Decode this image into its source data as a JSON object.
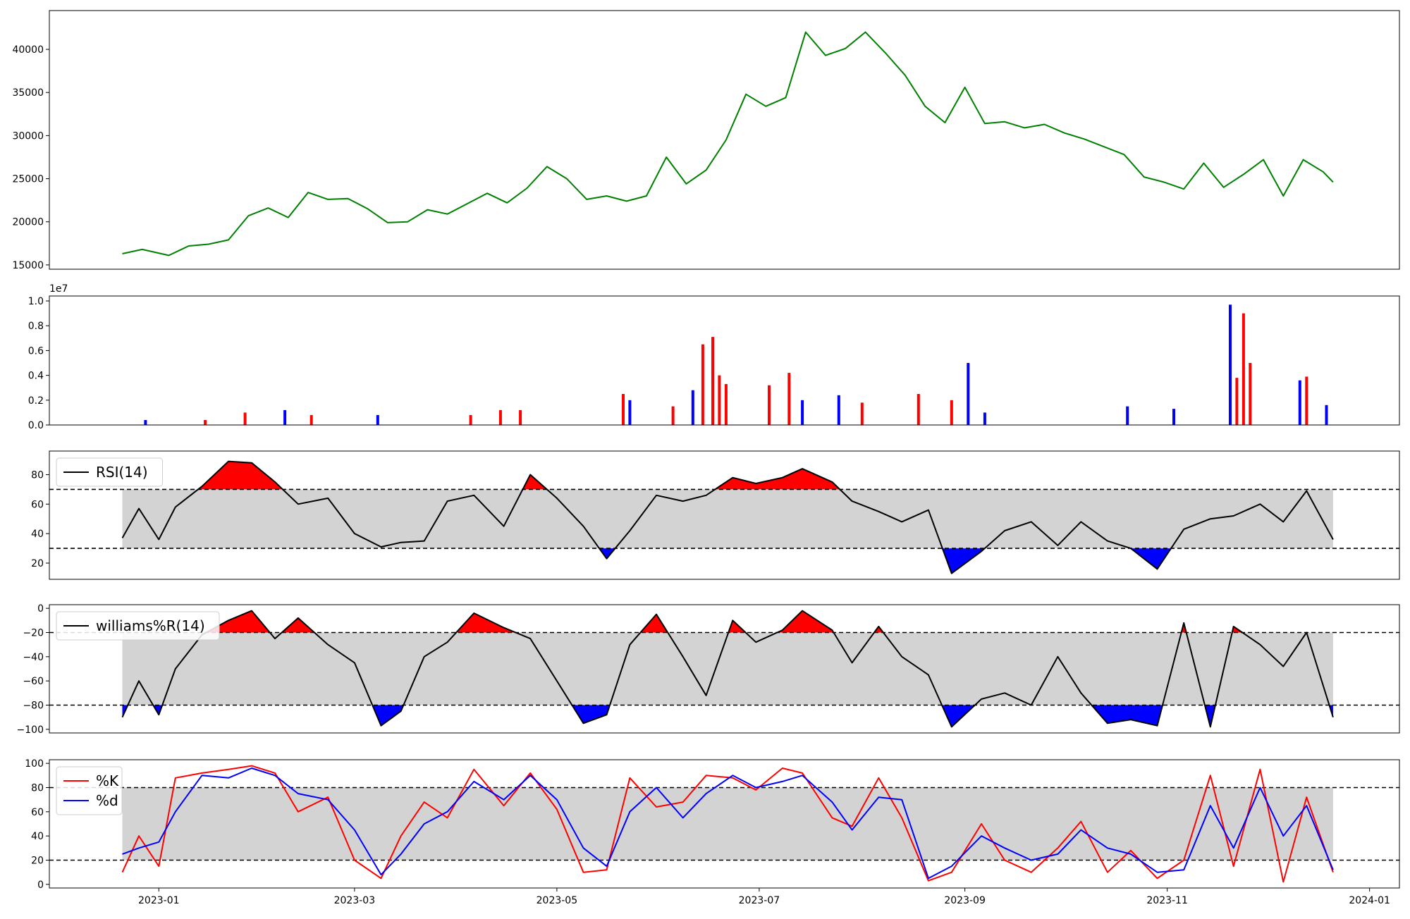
{
  "chart_data": [
    {
      "panel": "price",
      "type": "line",
      "title": "",
      "xlabel": "",
      "ylabel": "",
      "ylim": [
        14500,
        44500
      ],
      "yticks": [
        15000,
        20000,
        25000,
        30000,
        35000,
        40000
      ],
      "ytick_labels": [
        "15000",
        "20000",
        "25000",
        "30000",
        "35000",
        "40000"
      ],
      "line_color": "#008000",
      "series": [
        {
          "x": [
            "2022-12-21",
            "2022-12-27",
            "2023-01-04",
            "2023-01-10",
            "2023-01-16",
            "2023-01-22",
            "2023-01-28",
            "2023-02-03",
            "2023-02-09",
            "2023-02-15",
            "2023-02-21",
            "2023-02-27",
            "2023-03-05",
            "2023-03-11",
            "2023-03-17",
            "2023-03-23",
            "2023-03-29",
            "2023-04-04",
            "2023-04-10",
            "2023-04-16",
            "2023-04-22",
            "2023-04-28",
            "2023-05-04",
            "2023-05-10",
            "2023-05-16",
            "2023-05-22",
            "2023-05-28",
            "2023-06-03",
            "2023-06-09",
            "2023-06-15",
            "2023-06-21",
            "2023-06-27",
            "2023-07-03",
            "2023-07-09",
            "2023-07-15",
            "2023-07-21",
            "2023-07-27",
            "2023-08-02",
            "2023-08-08",
            "2023-08-14",
            "2023-08-20",
            "2023-08-26",
            "2023-09-01",
            "2023-09-07",
            "2023-09-13",
            "2023-09-19",
            "2023-09-25",
            "2023-10-01",
            "2023-10-07",
            "2023-10-13",
            "2023-10-19",
            "2023-10-25",
            "2023-10-31",
            "2023-11-06",
            "2023-11-12",
            "2023-11-18",
            "2023-11-24",
            "2023-11-30",
            "2023-12-06",
            "2023-12-12",
            "2023-12-18",
            "2023-12-21"
          ],
          "values": [
            16300,
            16800,
            16100,
            17200,
            17400,
            17900,
            20700,
            21600,
            20500,
            23400,
            22600,
            22700,
            21500,
            19900,
            20000,
            21400,
            20900,
            22100,
            23300,
            22200,
            23900,
            26400,
            25000,
            22600,
            23000,
            22400,
            23000,
            27500,
            24400,
            26000,
            29500,
            34800,
            33400,
            34400,
            42000,
            39300,
            40100,
            42000,
            39600,
            37000,
            33400,
            31500,
            35600,
            31400,
            31600,
            30900,
            31300,
            30300,
            29600,
            28700,
            27800,
            25200,
            24600,
            23800,
            26800,
            24000,
            25500,
            27200,
            23000,
            27200,
            25800,
            24600
          ]
        }
      ]
    },
    {
      "panel": "volume",
      "type": "bar",
      "title": "",
      "ylabel": "",
      "scale_label": "1e7",
      "ylim": [
        0,
        1.04
      ],
      "yticks": [
        0,
        0.2,
        0.4,
        0.6,
        0.8,
        1.0
      ],
      "ytick_labels": [
        "0.0",
        "0.2",
        "0.4",
        "0.6",
        "0.8",
        "1.0"
      ],
      "up_color": "#ff0000",
      "down_color": "#0000ff",
      "series": [
        {
          "x": [
            "2022-12-28",
            "2023-01-15",
            "2023-01-27",
            "2023-02-08",
            "2023-02-16",
            "2023-03-08",
            "2023-04-05",
            "2023-04-14",
            "2023-04-20",
            "2023-05-21",
            "2023-05-23",
            "2023-06-05",
            "2023-06-11",
            "2023-06-14",
            "2023-06-17",
            "2023-06-19",
            "2023-06-21",
            "2023-07-04",
            "2023-07-10",
            "2023-07-14",
            "2023-07-25",
            "2023-08-01",
            "2023-08-18",
            "2023-08-28",
            "2023-09-02",
            "2023-09-07",
            "2023-10-20",
            "2023-11-03",
            "2023-11-20",
            "2023-11-22",
            "2023-11-24",
            "2023-11-26",
            "2023-12-11",
            "2023-12-13",
            "2023-12-19"
          ],
          "values": [
            0.04,
            0.04,
            0.1,
            0.12,
            0.08,
            0.08,
            0.08,
            0.12,
            0.12,
            0.25,
            0.2,
            0.15,
            0.28,
            0.65,
            0.71,
            0.4,
            0.33,
            0.32,
            0.42,
            0.2,
            0.24,
            0.18,
            0.25,
            0.2,
            0.5,
            0.1,
            0.15,
            0.13,
            0.97,
            0.38,
            0.9,
            0.5,
            0.36,
            0.39,
            0.16
          ],
          "colors": [
            "blue",
            "red",
            "red",
            "blue",
            "red",
            "blue",
            "red",
            "red",
            "red",
            "red",
            "blue",
            "red",
            "blue",
            "red",
            "red",
            "red",
            "red",
            "red",
            "red",
            "blue",
            "blue",
            "red",
            "red",
            "red",
            "blue",
            "blue",
            "blue",
            "blue",
            "blue",
            "red",
            "red",
            "red",
            "blue",
            "red",
            "blue"
          ]
        }
      ]
    },
    {
      "panel": "rsi",
      "type": "line",
      "ylim": [
        9,
        96
      ],
      "yticks": [
        20,
        40,
        60,
        80
      ],
      "ytick_labels": [
        "20",
        "40",
        "60",
        "80"
      ],
      "thresholds": [
        30,
        70
      ],
      "legend": [
        "RSI(14)"
      ],
      "legend_location": "upper-left",
      "band_color": "#d3d3d3",
      "overbought_fill": "#ff0000",
      "oversold_fill": "#0000ff",
      "series": [
        {
          "name": "RSI(14)",
          "x": [
            "2022-12-21",
            "2022-12-26",
            "2023-01-01",
            "2023-01-06",
            "2023-01-14",
            "2023-01-22",
            "2023-01-29",
            "2023-02-05",
            "2023-02-12",
            "2023-02-21",
            "2023-03-01",
            "2023-03-09",
            "2023-03-15",
            "2023-03-22",
            "2023-03-29",
            "2023-04-06",
            "2023-04-15",
            "2023-04-23",
            "2023-05-01",
            "2023-05-09",
            "2023-05-16",
            "2023-05-23",
            "2023-05-31",
            "2023-06-08",
            "2023-06-15",
            "2023-06-23",
            "2023-06-30",
            "2023-07-08",
            "2023-07-14",
            "2023-07-23",
            "2023-07-29",
            "2023-08-06",
            "2023-08-13",
            "2023-08-21",
            "2023-08-28",
            "2023-09-06",
            "2023-09-13",
            "2023-09-21",
            "2023-09-29",
            "2023-10-06",
            "2023-10-14",
            "2023-10-21",
            "2023-10-29",
            "2023-11-06",
            "2023-11-14",
            "2023-11-21",
            "2023-11-29",
            "2023-12-06",
            "2023-12-13",
            "2023-12-21"
          ],
          "values": [
            37,
            57,
            36,
            58,
            72,
            89,
            88,
            75,
            60,
            64,
            40,
            31,
            34,
            35,
            62,
            66,
            45,
            80,
            64,
            45,
            23,
            42,
            66,
            62,
            66,
            78,
            74,
            78,
            84,
            75,
            62,
            55,
            48,
            56,
            13,
            28,
            42,
            48,
            32,
            48,
            35,
            30,
            16,
            43,
            50,
            52,
            60,
            48,
            69,
            36
          ]
        }
      ]
    },
    {
      "panel": "williams",
      "type": "line",
      "ylim": [
        -103,
        3
      ],
      "yticks": [
        -100,
        -80,
        -60,
        -40,
        -20,
        0
      ],
      "ytick_labels": [
        "−100",
        "−80",
        "−60",
        "−40",
        "−20",
        "0"
      ],
      "thresholds": [
        -80,
        -20
      ],
      "legend": [
        "williams%R(14)"
      ],
      "legend_location": "upper-left",
      "band_color": "#d3d3d3",
      "overbought_fill": "#ff0000",
      "oversold_fill": "#0000ff",
      "series": [
        {
          "name": "williams%R(14)",
          "x": [
            "2022-12-21",
            "2022-12-26",
            "2023-01-01",
            "2023-01-06",
            "2023-01-14",
            "2023-01-22",
            "2023-01-29",
            "2023-02-05",
            "2023-02-12",
            "2023-02-21",
            "2023-03-01",
            "2023-03-09",
            "2023-03-15",
            "2023-03-22",
            "2023-03-29",
            "2023-04-06",
            "2023-04-15",
            "2023-04-23",
            "2023-05-01",
            "2023-05-09",
            "2023-05-16",
            "2023-05-23",
            "2023-05-31",
            "2023-06-08",
            "2023-06-15",
            "2023-06-23",
            "2023-06-30",
            "2023-07-08",
            "2023-07-14",
            "2023-07-23",
            "2023-07-29",
            "2023-08-06",
            "2023-08-13",
            "2023-08-21",
            "2023-08-28",
            "2023-09-06",
            "2023-09-13",
            "2023-09-21",
            "2023-09-29",
            "2023-10-06",
            "2023-10-14",
            "2023-10-21",
            "2023-10-29",
            "2023-11-06",
            "2023-11-14",
            "2023-11-21",
            "2023-11-29",
            "2023-12-06",
            "2023-12-13",
            "2023-12-21"
          ],
          "values": [
            -90,
            -60,
            -88,
            -50,
            -22,
            -10,
            -2,
            -25,
            -8,
            -30,
            -45,
            -97,
            -85,
            -40,
            -28,
            -4,
            -16,
            -25,
            -60,
            -95,
            -88,
            -30,
            -5,
            -40,
            -72,
            -10,
            -28,
            -18,
            -2,
            -18,
            -45,
            -15,
            -40,
            -55,
            -98,
            -75,
            -70,
            -80,
            -40,
            -70,
            -95,
            -92,
            -97,
            -12,
            -98,
            -15,
            -30,
            -48,
            -20,
            -90
          ]
        }
      ]
    },
    {
      "panel": "stochastic",
      "type": "line",
      "ylim": [
        -3,
        103
      ],
      "yticks": [
        0,
        20,
        40,
        60,
        80,
        100
      ],
      "ytick_labels": [
        "0",
        "20",
        "40",
        "60",
        "80",
        "100"
      ],
      "thresholds": [
        20,
        80
      ],
      "legend": [
        "%K",
        "%d"
      ],
      "legend_location": "upper-left",
      "band_color": "#d3d3d3",
      "xtick_labels": [
        "2023-01",
        "2023-03",
        "2023-05",
        "2023-07",
        "2023-09",
        "2023-11",
        "2024-01"
      ],
      "xticks": [
        "2023-01-01",
        "2023-03-01",
        "2023-05-01",
        "2023-07-01",
        "2023-09-01",
        "2023-11-01",
        "2024-01-01"
      ],
      "series": [
        {
          "name": "%K",
          "color": "#ff0000",
          "x": [
            "2022-12-21",
            "2022-12-26",
            "2023-01-01",
            "2023-01-06",
            "2023-01-14",
            "2023-01-22",
            "2023-01-29",
            "2023-02-05",
            "2023-02-12",
            "2023-02-21",
            "2023-03-01",
            "2023-03-09",
            "2023-03-15",
            "2023-03-22",
            "2023-03-29",
            "2023-04-06",
            "2023-04-15",
            "2023-04-23",
            "2023-05-01",
            "2023-05-09",
            "2023-05-16",
            "2023-05-23",
            "2023-05-31",
            "2023-06-08",
            "2023-06-15",
            "2023-06-23",
            "2023-06-30",
            "2023-07-08",
            "2023-07-14",
            "2023-07-23",
            "2023-07-29",
            "2023-08-06",
            "2023-08-13",
            "2023-08-21",
            "2023-08-28",
            "2023-09-06",
            "2023-09-13",
            "2023-09-21",
            "2023-09-29",
            "2023-10-06",
            "2023-10-14",
            "2023-10-21",
            "2023-10-29",
            "2023-11-06",
            "2023-11-14",
            "2023-11-21",
            "2023-11-29",
            "2023-12-06",
            "2023-12-13",
            "2023-12-21"
          ],
          "values": [
            10,
            40,
            15,
            88,
            92,
            95,
            98,
            92,
            60,
            72,
            20,
            5,
            40,
            68,
            55,
            95,
            65,
            92,
            62,
            10,
            12,
            88,
            64,
            68,
            90,
            88,
            78,
            96,
            92,
            55,
            48,
            88,
            55,
            3,
            10,
            50,
            20,
            10,
            30,
            52,
            10,
            28,
            5,
            20,
            90,
            15,
            95,
            2,
            72,
            10
          ]
        },
        {
          "name": "%d",
          "color": "#0000ff",
          "x": [
            "2022-12-21",
            "2022-12-26",
            "2023-01-01",
            "2023-01-06",
            "2023-01-14",
            "2023-01-22",
            "2023-01-29",
            "2023-02-05",
            "2023-02-12",
            "2023-02-21",
            "2023-03-01",
            "2023-03-09",
            "2023-03-15",
            "2023-03-22",
            "2023-03-29",
            "2023-04-06",
            "2023-04-15",
            "2023-04-23",
            "2023-05-01",
            "2023-05-09",
            "2023-05-16",
            "2023-05-23",
            "2023-05-31",
            "2023-06-08",
            "2023-06-15",
            "2023-06-23",
            "2023-06-30",
            "2023-07-08",
            "2023-07-14",
            "2023-07-23",
            "2023-07-29",
            "2023-08-06",
            "2023-08-13",
            "2023-08-21",
            "2023-08-28",
            "2023-09-06",
            "2023-09-13",
            "2023-09-21",
            "2023-09-29",
            "2023-10-06",
            "2023-10-14",
            "2023-10-21",
            "2023-10-29",
            "2023-11-06",
            "2023-11-14",
            "2023-11-21",
            "2023-11-29",
            "2023-12-06",
            "2023-12-13",
            "2023-12-21"
          ],
          "values": [
            25,
            30,
            35,
            60,
            90,
            88,
            96,
            90,
            75,
            70,
            45,
            8,
            25,
            50,
            60,
            85,
            70,
            90,
            70,
            30,
            15,
            60,
            80,
            55,
            75,
            90,
            80,
            85,
            90,
            68,
            45,
            72,
            70,
            5,
            15,
            40,
            30,
            20,
            25,
            45,
            30,
            25,
            10,
            12,
            65,
            30,
            80,
            40,
            65,
            12
          ]
        }
      ]
    }
  ]
}
